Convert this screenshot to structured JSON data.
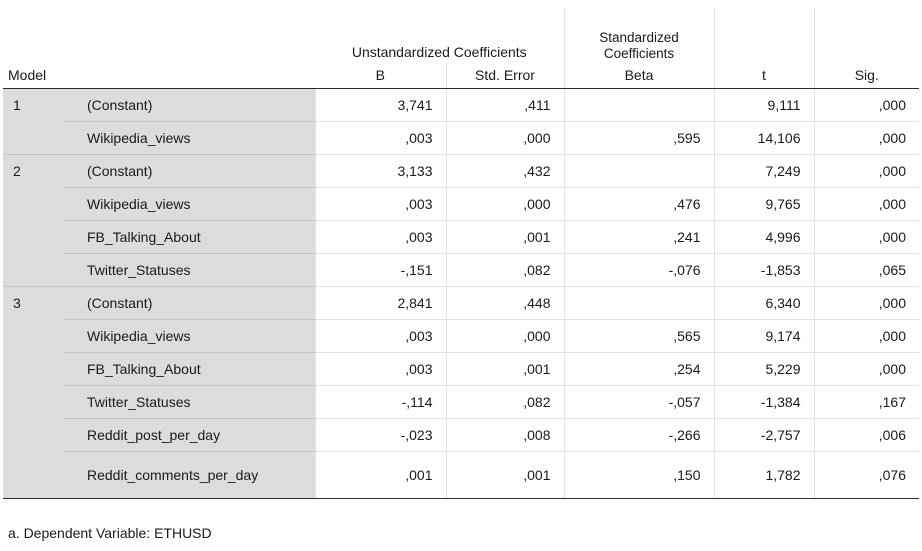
{
  "header": {
    "model": "Model",
    "unstandardized": "Unstandardized Coefficients",
    "standardized": "Standardized Coefficients",
    "b": "B",
    "std_error": "Std. Error",
    "beta": "Beta",
    "t": "t",
    "sig": "Sig."
  },
  "rows": [
    {
      "model": "1",
      "var": "(Constant)",
      "b": "3,741",
      "se": ",411",
      "beta": "",
      "t": "9,111",
      "sig": ",000"
    },
    {
      "model": "",
      "var": "Wikipedia_views",
      "b": ",003",
      "se": ",000",
      "beta": ",595",
      "t": "14,106",
      "sig": ",000"
    },
    {
      "model": "2",
      "var": "(Constant)",
      "b": "3,133",
      "se": ",432",
      "beta": "",
      "t": "7,249",
      "sig": ",000"
    },
    {
      "model": "",
      "var": "Wikipedia_views",
      "b": ",003",
      "se": ",000",
      "beta": ",476",
      "t": "9,765",
      "sig": ",000"
    },
    {
      "model": "",
      "var": "FB_Talking_About",
      "b": ",003",
      "se": ",001",
      "beta": ",241",
      "t": "4,996",
      "sig": ",000"
    },
    {
      "model": "",
      "var": "Twitter_Statuses",
      "b": "-,151",
      "se": ",082",
      "beta": "-,076",
      "t": "-1,853",
      "sig": ",065"
    },
    {
      "model": "3",
      "var": "(Constant)",
      "b": "2,841",
      "se": ",448",
      "beta": "",
      "t": "6,340",
      "sig": ",000"
    },
    {
      "model": "",
      "var": "Wikipedia_views",
      "b": ",003",
      "se": ",000",
      "beta": ",565",
      "t": "9,174",
      "sig": ",000"
    },
    {
      "model": "",
      "var": "FB_Talking_About",
      "b": ",003",
      "se": ",001",
      "beta": ",254",
      "t": "5,229",
      "sig": ",000"
    },
    {
      "model": "",
      "var": "Twitter_Statuses",
      "b": "-,114",
      "se": ",082",
      "beta": "-,057",
      "t": "-1,384",
      "sig": ",167"
    },
    {
      "model": "",
      "var": "Reddit_post_per_day",
      "b": "-,023",
      "se": ",008",
      "beta": "-,266",
      "t": "-2,757",
      "sig": ",006"
    },
    {
      "model": "",
      "var": "Reddit_comments_per_day",
      "b": ",001",
      "se": ",001",
      "beta": ",150",
      "t": "1,782",
      "sig": ",076"
    }
  ],
  "footnote": "a. Dependent Variable: ETHUSD"
}
